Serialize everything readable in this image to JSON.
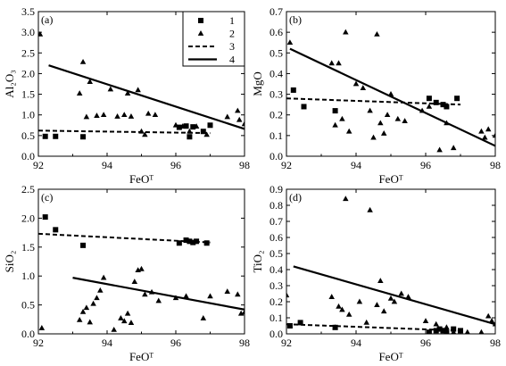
{
  "legend": {
    "entries": [
      {
        "label": "1",
        "marker": "square"
      },
      {
        "label": "2",
        "marker": "triangle"
      },
      {
        "label": "3",
        "line": "dashed"
      },
      {
        "label": "4",
        "line": "solid"
      }
    ]
  },
  "chart_data": [
    {
      "type": "scatter",
      "panel": "(a)",
      "ylabel": "Al₂O₃",
      "xlabel": "FeOᵀ",
      "xlim": [
        92,
        98
      ],
      "ylim": [
        0,
        3.5
      ],
      "xticks": [
        "92",
        "94",
        "96",
        "98"
      ],
      "yticks": [
        "0.0",
        "0.5",
        "1.0",
        "1.5",
        "2.0",
        "2.5",
        "3.0",
        "3.5"
      ],
      "squares": [
        [
          92.2,
          0.48
        ],
        [
          92.5,
          0.48
        ],
        [
          93.3,
          0.47
        ],
        [
          96.1,
          0.7
        ],
        [
          96.3,
          0.73
        ],
        [
          96.4,
          0.47
        ],
        [
          96.5,
          0.71
        ],
        [
          96.8,
          0.6
        ],
        [
          97.0,
          0.75
        ]
      ],
      "triangles": [
        [
          92.05,
          2.95
        ],
        [
          93.2,
          1.52
        ],
        [
          93.3,
          2.28
        ],
        [
          93.4,
          0.95
        ],
        [
          93.5,
          1.8
        ],
        [
          93.7,
          0.98
        ],
        [
          93.9,
          1.0
        ],
        [
          94.1,
          1.62
        ],
        [
          94.3,
          0.96
        ],
        [
          94.5,
          1.0
        ],
        [
          94.6,
          1.52
        ],
        [
          94.7,
          0.96
        ],
        [
          94.9,
          1.6
        ],
        [
          95.0,
          0.6
        ],
        [
          95.1,
          0.52
        ],
        [
          95.2,
          1.03
        ],
        [
          95.4,
          1.0
        ],
        [
          96.0,
          0.75
        ],
        [
          96.2,
          0.72
        ],
        [
          96.4,
          0.6
        ],
        [
          96.6,
          0.72
        ],
        [
          96.9,
          0.52
        ],
        [
          97.5,
          0.95
        ],
        [
          97.8,
          1.1
        ],
        [
          97.85,
          0.88
        ],
        [
          98.0,
          0.78
        ]
      ],
      "line3": [
        [
          92.0,
          0.62
        ],
        [
          97.0,
          0.56
        ]
      ],
      "line4": [
        [
          92.3,
          2.2
        ],
        [
          98.0,
          0.66
        ]
      ],
      "legend_shown": true
    },
    {
      "type": "scatter",
      "panel": "(b)",
      "ylabel": "MgO",
      "xlabel": "FeOᵀ",
      "xlim": [
        92,
        98
      ],
      "ylim": [
        0,
        0.7
      ],
      "xticks": [
        "92",
        "94",
        "96",
        "98"
      ],
      "yticks": [
        "0.0",
        "0.1",
        "0.2",
        "0.3",
        "0.4",
        "0.5",
        "0.6",
        "0.7"
      ],
      "squares": [
        [
          92.2,
          0.32
        ],
        [
          92.5,
          0.24
        ],
        [
          93.4,
          0.22
        ],
        [
          96.1,
          0.28
        ],
        [
          96.3,
          0.26
        ],
        [
          96.5,
          0.25
        ],
        [
          96.6,
          0.24
        ],
        [
          96.9,
          0.28
        ]
      ],
      "triangles": [
        [
          92.1,
          0.55
        ],
        [
          93.3,
          0.45
        ],
        [
          93.4,
          0.15
        ],
        [
          93.5,
          0.45
        ],
        [
          93.6,
          0.18
        ],
        [
          93.7,
          0.6
        ],
        [
          93.8,
          0.12
        ],
        [
          94.0,
          0.35
        ],
        [
          94.2,
          0.33
        ],
        [
          94.4,
          0.22
        ],
        [
          94.5,
          0.09
        ],
        [
          94.6,
          0.59
        ],
        [
          94.7,
          0.16
        ],
        [
          94.8,
          0.11
        ],
        [
          94.9,
          0.2
        ],
        [
          95.0,
          0.3
        ],
        [
          95.2,
          0.18
        ],
        [
          95.4,
          0.17
        ],
        [
          95.9,
          0.22
        ],
        [
          96.1,
          0.24
        ],
        [
          96.4,
          0.03
        ],
        [
          96.6,
          0.16
        ],
        [
          96.8,
          0.04
        ],
        [
          97.6,
          0.12
        ],
        [
          97.7,
          0.09
        ],
        [
          97.8,
          0.13
        ],
        [
          98.0,
          0.1
        ]
      ],
      "line3": [
        [
          92.0,
          0.28
        ],
        [
          97.0,
          0.25
        ]
      ],
      "line4": [
        [
          92.1,
          0.52
        ],
        [
          98.0,
          0.05
        ]
      ],
      "legend_shown": false
    },
    {
      "type": "scatter",
      "panel": "(c)",
      "ylabel": "SiO₂",
      "xlabel": "FeOᵀ",
      "xlim": [
        92,
        98
      ],
      "ylim": [
        0,
        2.5
      ],
      "xticks": [
        "92",
        "94",
        "96",
        "98"
      ],
      "yticks": [
        "0.0",
        "0.5",
        "1.0",
        "1.5",
        "2.0",
        "2.5"
      ],
      "squares": [
        [
          92.2,
          2.02
        ],
        [
          92.5,
          1.8
        ],
        [
          93.3,
          1.53
        ],
        [
          96.1,
          1.57
        ],
        [
          96.3,
          1.62
        ],
        [
          96.4,
          1.6
        ],
        [
          96.5,
          1.58
        ],
        [
          96.6,
          1.6
        ],
        [
          96.9,
          1.57
        ]
      ],
      "triangles": [
        [
          92.1,
          0.1
        ],
        [
          93.2,
          0.24
        ],
        [
          93.3,
          0.38
        ],
        [
          93.4,
          0.45
        ],
        [
          93.5,
          0.2
        ],
        [
          93.6,
          0.52
        ],
        [
          93.7,
          0.62
        ],
        [
          93.8,
          0.75
        ],
        [
          93.9,
          0.97
        ],
        [
          94.2,
          0.07
        ],
        [
          94.4,
          0.27
        ],
        [
          94.5,
          0.22
        ],
        [
          94.6,
          0.35
        ],
        [
          94.7,
          0.19
        ],
        [
          94.8,
          0.9
        ],
        [
          94.9,
          1.1
        ],
        [
          95.0,
          1.12
        ],
        [
          95.1,
          0.68
        ],
        [
          95.3,
          0.72
        ],
        [
          95.5,
          0.57
        ],
        [
          96.0,
          0.62
        ],
        [
          96.3,
          0.65
        ],
        [
          96.8,
          0.27
        ],
        [
          97.0,
          0.65
        ],
        [
          97.5,
          0.73
        ],
        [
          97.8,
          0.68
        ],
        [
          97.9,
          0.35
        ],
        [
          98.0,
          0.37
        ]
      ],
      "line3": [
        [
          92.0,
          1.73
        ],
        [
          97.0,
          1.58
        ]
      ],
      "line4": [
        [
          93.0,
          0.97
        ],
        [
          98.0,
          0.42
        ]
      ],
      "legend_shown": false
    },
    {
      "type": "scatter",
      "panel": "(d)",
      "ylabel": "TiO₂",
      "xlabel": "FeOᵀ",
      "xlim": [
        92,
        98
      ],
      "ylim": [
        0,
        0.9
      ],
      "xticks": [
        "92",
        "94",
        "96",
        "98"
      ],
      "yticks": [
        "0.0",
        "0.1",
        "0.2",
        "0.3",
        "0.4",
        "0.5",
        "0.6",
        "0.7",
        "0.8",
        "0.9"
      ],
      "squares": [
        [
          92.1,
          0.05
        ],
        [
          92.4,
          0.07
        ],
        [
          93.4,
          0.04
        ],
        [
          96.1,
          0.01
        ],
        [
          96.3,
          0.02
        ],
        [
          96.4,
          0.03
        ],
        [
          96.5,
          0.02
        ],
        [
          96.6,
          0.01
        ],
        [
          96.8,
          0.03
        ],
        [
          97.0,
          0.02
        ]
      ],
      "triangles": [
        [
          92.0,
          0.24
        ],
        [
          93.3,
          0.23
        ],
        [
          93.4,
          0.04
        ],
        [
          93.5,
          0.17
        ],
        [
          93.6,
          0.15
        ],
        [
          93.7,
          0.84
        ],
        [
          93.8,
          0.12
        ],
        [
          94.1,
          0.2
        ],
        [
          94.3,
          0.07
        ],
        [
          94.4,
          0.77
        ],
        [
          94.6,
          0.18
        ],
        [
          94.7,
          0.33
        ],
        [
          94.8,
          0.14
        ],
        [
          95.0,
          0.22
        ],
        [
          95.1,
          0.2
        ],
        [
          95.3,
          0.25
        ],
        [
          95.5,
          0.23
        ],
        [
          96.0,
          0.08
        ],
        [
          96.3,
          0.06
        ],
        [
          96.5,
          0.02
        ],
        [
          96.6,
          0.04
        ],
        [
          96.8,
          0.01
        ],
        [
          97.2,
          0.01
        ],
        [
          97.6,
          0.01
        ],
        [
          97.8,
          0.11
        ],
        [
          97.9,
          0.08
        ],
        [
          98.0,
          0.06
        ]
      ],
      "line3": [
        [
          92.0,
          0.06
        ],
        [
          97.0,
          0.02
        ]
      ],
      "line4": [
        [
          92.2,
          0.42
        ],
        [
          98.0,
          0.06
        ]
      ],
      "legend_shown": false
    }
  ]
}
